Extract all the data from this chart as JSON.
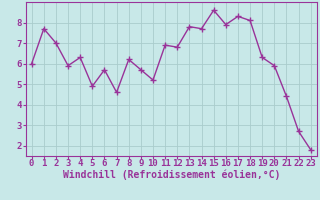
{
  "x": [
    0,
    1,
    2,
    3,
    4,
    5,
    6,
    7,
    8,
    9,
    10,
    11,
    12,
    13,
    14,
    15,
    16,
    17,
    18,
    19,
    20,
    21,
    22,
    23
  ],
  "y": [
    6.0,
    7.7,
    7.0,
    5.9,
    6.3,
    4.9,
    5.7,
    4.6,
    6.2,
    5.7,
    5.2,
    6.9,
    6.8,
    7.8,
    7.7,
    8.6,
    7.9,
    8.3,
    8.1,
    6.3,
    5.9,
    4.4,
    2.7,
    1.8
  ],
  "line_color": "#993399",
  "marker_color": "#993399",
  "bg_color": "#c8e8e8",
  "grid_color": "#aacccc",
  "axis_color": "#993399",
  "spine_color": "#993399",
  "xlabel": "Windchill (Refroidissement éolien,°C)",
  "xlim": [
    -0.5,
    23.5
  ],
  "ylim": [
    1.5,
    9.0
  ],
  "yticks": [
    2,
    3,
    4,
    5,
    6,
    7,
    8
  ],
  "xticks": [
    0,
    1,
    2,
    3,
    4,
    5,
    6,
    7,
    8,
    9,
    10,
    11,
    12,
    13,
    14,
    15,
    16,
    17,
    18,
    19,
    20,
    21,
    22,
    23
  ],
  "font_color": "#993399",
  "xlabel_fontsize": 7,
  "tick_fontsize": 6.5,
  "line_width": 1.0,
  "marker_size": 4,
  "marker_style": "+"
}
